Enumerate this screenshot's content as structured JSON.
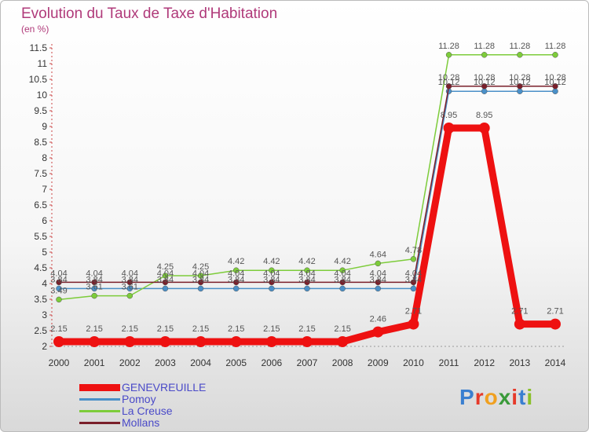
{
  "chart_data": {
    "type": "line",
    "title": "Evolution du Taux de Taxe d'Habitation",
    "subtitle": "(en %)",
    "xlabel": "",
    "ylabel": "",
    "ylim": [
      2,
      11.5
    ],
    "yticks": [
      2,
      2.5,
      3,
      3.5,
      4,
      4.5,
      5,
      5.5,
      6,
      6.5,
      7,
      7.5,
      8,
      8.5,
      9,
      9.5,
      10,
      10.5,
      11,
      11.5
    ],
    "categories": [
      "2000",
      "2001",
      "2002",
      "2003",
      "2004",
      "2005",
      "2006",
      "2007",
      "2008",
      "2009",
      "2010",
      "2011",
      "2012",
      "2013",
      "2014"
    ],
    "series": [
      {
        "name": "Pomoy",
        "color": "#4a90c8",
        "values": [
          3.84,
          3.84,
          3.84,
          3.84,
          3.84,
          3.84,
          3.84,
          3.84,
          3.84,
          3.84,
          3.84,
          10.12,
          10.12,
          10.12,
          10.12
        ],
        "labels": [
          "3.84",
          "3.84",
          "3.84",
          "3.84",
          "3.84",
          "3.84",
          "3.84",
          "3.84",
          "3.84",
          "3.84",
          "3.84",
          "10.12",
          "10.12",
          "10.12",
          "10.12"
        ]
      },
      {
        "name": "La Creuse",
        "color": "#7dcc3a",
        "values": [
          3.49,
          3.61,
          3.61,
          4.25,
          4.25,
          4.42,
          4.42,
          4.42,
          4.42,
          4.64,
          4.78,
          11.28,
          11.28,
          11.28,
          11.28
        ],
        "labels": [
          "3.49",
          "3.61",
          "3.61",
          "4.25",
          "4.25",
          "4.42",
          "4.42",
          "4.42",
          "4.42",
          "4.64",
          "4.78",
          "11.28",
          "11.28",
          "11.28",
          "11.28"
        ]
      },
      {
        "name": "Mollans",
        "color": "#7a1f2a",
        "values": [
          4.04,
          4.04,
          4.04,
          4.04,
          4.04,
          4.04,
          4.04,
          4.04,
          4.04,
          4.04,
          4.04,
          10.28,
          10.28,
          10.28,
          10.28
        ],
        "labels": [
          "4.04",
          "4.04",
          "4.04",
          "4.04",
          "4.04",
          "4.04",
          "4.04",
          "4.04",
          "4.04",
          "4.04",
          "4.04",
          "10.28",
          "10.28",
          "10.28",
          "10.28"
        ]
      },
      {
        "name": "GENEVREUILLE",
        "color": "#ee1111",
        "values": [
          2.15,
          2.15,
          2.15,
          2.15,
          2.15,
          2.15,
          2.15,
          2.15,
          2.15,
          2.46,
          2.71,
          8.95,
          8.95,
          2.71,
          2.71
        ],
        "labels": [
          "2.15",
          "2.15",
          "2.15",
          "2.15",
          "2.15",
          "2.15",
          "2.15",
          "2.15",
          "2.15",
          "2.46",
          "2.71",
          "8.95",
          "8.95",
          "2.71",
          "2.71"
        ]
      }
    ],
    "legend": [
      {
        "name": "GENEVREUILLE",
        "color": "#ee1111"
      },
      {
        "name": "Pomoy",
        "color": "#4a90c8"
      },
      {
        "name": "La Creuse",
        "color": "#7dcc3a"
      },
      {
        "name": "Mollans",
        "color": "#7a1f2a"
      }
    ]
  },
  "logo": {
    "text": "Proxiti"
  }
}
